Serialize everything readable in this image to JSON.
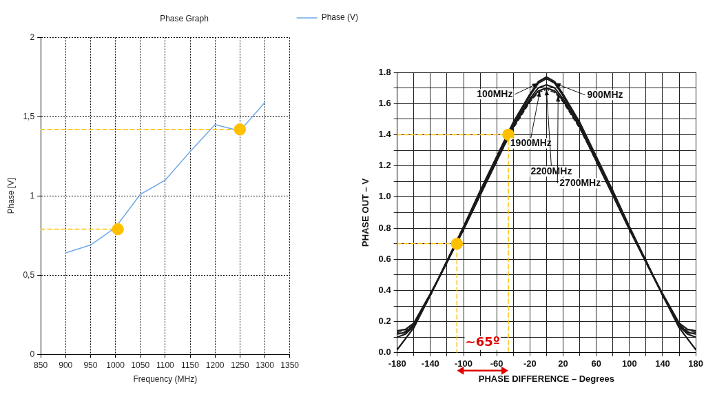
{
  "chart_data": [
    {
      "type": "line",
      "title": "Phase Graph",
      "xlabel": "Frequency (MHz)",
      "ylabel": "Phase [V]",
      "series": [
        {
          "name": "Phase (V)",
          "color": "#6fa8e8",
          "x": [
            900,
            950,
            1000,
            1050,
            1100,
            1150,
            1200,
            1250,
            1300
          ],
          "values": [
            0.64,
            0.69,
            0.8,
            1.01,
            1.1,
            1.28,
            1.45,
            1.41,
            1.59
          ]
        },
        {
          "type": "line",
          "color": "#ffc000",
          "line_style": "dashed",
          "x": [
            850,
            1005
          ],
          "values": [
            0.79,
            0.79
          ]
        },
        {
          "type": "line",
          "color": "#ffc000",
          "line_style": "dashed",
          "x": [
            850,
            1250
          ],
          "values": [
            1.42,
            1.42
          ]
        },
        {
          "type": "scatter",
          "color": "#ffc000",
          "marker": "circle",
          "x": [
            1005,
            1250
          ],
          "values": [
            0.79,
            1.42
          ]
        }
      ],
      "xlim": [
        850,
        1350
      ],
      "xticks": [
        850,
        900,
        950,
        1000,
        1050,
        1100,
        1150,
        1200,
        1250,
        1300,
        1350
      ],
      "ylim": [
        0,
        2
      ],
      "yticks": [
        0,
        {
          "value": 0.5,
          "label": "0,5"
        },
        1,
        {
          "value": 1.5,
          "label": "1,5"
        },
        2
      ],
      "grid": true,
      "legend": "top right"
    },
    {
      "type": "line",
      "xlabel": "PHASE DIFFERENCE – Degrees",
      "ylabel": "PHASE OUT – V",
      "x": [
        -180,
        -170,
        -160,
        -140,
        -120,
        -100,
        -80,
        -60,
        -40,
        -20,
        -10,
        0,
        10,
        20,
        40,
        60,
        80,
        100,
        120,
        140,
        160,
        170,
        180
      ],
      "series": [
        {
          "color": "#1a1a1a",
          "values": [
            0.02,
            0.09,
            0.16,
            0.37,
            0.59,
            0.81,
            1.04,
            1.26,
            1.48,
            1.66,
            1.74,
            1.77,
            1.74,
            1.66,
            1.48,
            1.26,
            1.04,
            0.81,
            0.59,
            0.37,
            0.16,
            0.09,
            0.02
          ]
        },
        {
          "color": "#1a1a1a",
          "values": [
            0.1,
            0.12,
            0.17,
            0.37,
            0.59,
            0.8,
            1.03,
            1.25,
            1.47,
            1.65,
            1.73,
            1.76,
            1.73,
            1.65,
            1.47,
            1.25,
            1.03,
            0.8,
            0.59,
            0.37,
            0.17,
            0.12,
            0.1
          ]
        },
        {
          "color": "#1a1a1a",
          "values": [
            0.12,
            0.13,
            0.18,
            0.37,
            0.58,
            0.8,
            1.02,
            1.24,
            1.46,
            1.63,
            1.7,
            1.72,
            1.7,
            1.63,
            1.46,
            1.24,
            1.02,
            0.8,
            0.58,
            0.37,
            0.18,
            0.13,
            0.12
          ]
        },
        {
          "color": "#1a1a1a",
          "values": [
            0.14,
            0.15,
            0.19,
            0.38,
            0.58,
            0.79,
            1.01,
            1.23,
            1.45,
            1.62,
            1.68,
            1.7,
            1.68,
            1.62,
            1.45,
            1.23,
            1.01,
            0.79,
            0.58,
            0.38,
            0.19,
            0.15,
            0.14
          ]
        },
        {
          "color": "#1a1a1a",
          "line_style": "dashed",
          "values": [
            0.13,
            0.14,
            0.18,
            0.37,
            0.58,
            0.79,
            1.01,
            1.23,
            1.44,
            1.61,
            1.67,
            1.69,
            1.67,
            1.61,
            1.44,
            1.23,
            1.01,
            0.79,
            0.58,
            0.37,
            0.18,
            0.14,
            0.13
          ]
        },
        {
          "type": "line",
          "color": "#ffc000",
          "line_style": "dashed",
          "x": [
            -180,
            -108,
            -108
          ],
          "values": [
            0.7,
            0.7,
            0
          ]
        },
        {
          "type": "line",
          "color": "#ffc000",
          "line_style": "dashed",
          "x": [
            -180,
            -46,
            -46
          ],
          "values": [
            1.4,
            1.4,
            0
          ]
        },
        {
          "type": "scatter",
          "color": "#ffc000",
          "marker": "circle",
          "x": [
            -108,
            -46
          ],
          "values": [
            0.7,
            1.4
          ]
        }
      ],
      "xlim": [
        -180,
        180
      ],
      "xticks": [
        -180,
        {
          "value": -160,
          "label": null
        },
        -140,
        {
          "value": -120,
          "label": null
        },
        -100,
        {
          "value": -80,
          "label": null
        },
        -60,
        {
          "value": -40,
          "label": null
        },
        -20,
        {
          "value": 0,
          "label": null
        },
        20,
        {
          "value": 40,
          "label": null
        },
        60,
        {
          "value": 80,
          "label": null
        },
        100,
        {
          "value": 120,
          "label": null
        },
        140,
        {
          "value": 160,
          "label": null
        },
        180
      ],
      "ylim": [
        0,
        1.8
      ],
      "yticks": [
        {
          "value": 0,
          "label": "0.0"
        },
        {
          "value": 0.1,
          "label": null
        },
        {
          "value": 0.2,
          "label": "0.2"
        },
        {
          "value": 0.3,
          "label": null
        },
        {
          "value": 0.4,
          "label": "0.4"
        },
        {
          "value": 0.5,
          "label": null
        },
        {
          "value": 0.6,
          "label": "0.6"
        },
        {
          "value": 0.7,
          "label": null
        },
        {
          "value": 0.8,
          "label": "0.8"
        },
        {
          "value": 0.9,
          "label": null
        },
        {
          "value": 1.0,
          "label": "1.0"
        },
        {
          "value": 1.1,
          "label": null
        },
        {
          "value": 1.2,
          "label": "1.2"
        },
        {
          "value": 1.3,
          "label": null
        },
        {
          "value": 1.4,
          "label": "1.4"
        },
        {
          "value": 1.5,
          "label": null
        },
        {
          "value": 1.6,
          "label": "1.6"
        },
        {
          "value": 1.7,
          "label": null
        },
        {
          "value": 1.8,
          "label": "1.8"
        }
      ],
      "grid": true,
      "annotations": [
        {
          "text": "100MHz",
          "x": -10,
          "y": 1.73
        },
        {
          "text": "900MHz",
          "x": 10,
          "y": 1.73
        },
        {
          "text": "1900MHz",
          "x": -8,
          "y": 1.68
        },
        {
          "text": "2200MHz",
          "x": 0,
          "y": 1.69
        },
        {
          "text": "2700MHz",
          "x": 14,
          "y": 1.65
        },
        "~65º"
      ]
    }
  ]
}
